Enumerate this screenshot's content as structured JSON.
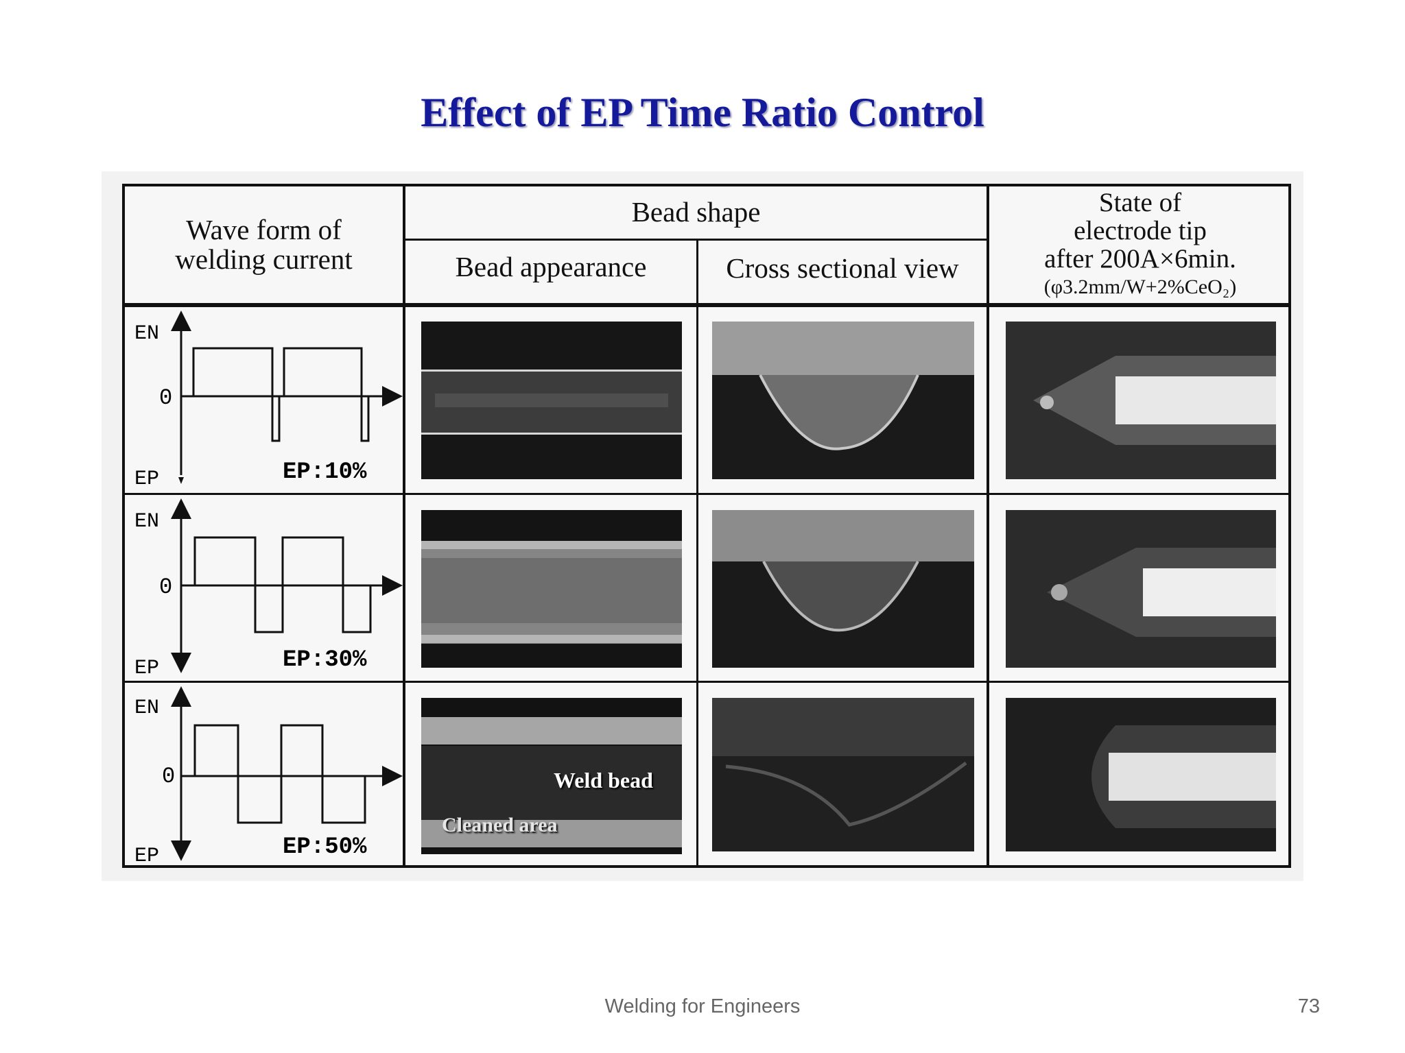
{
  "slide": {
    "title": "Effect of EP Time Ratio Control",
    "footer": "Welding for Engineers",
    "page_number": "73"
  },
  "table": {
    "header": {
      "waveform": "Wave form of\nwelding current",
      "bead_shape": "Bead shape",
      "bead_appearance": "Bead appearance",
      "cross_section": "Cross sectional view",
      "electrode_state_line1": "State of",
      "electrode_state_line2": "electrode tip",
      "electrode_state_line3": "after 200A×6min.",
      "electrode_state_line4": "(φ3.2mm/W+2%CeO₂)"
    },
    "axis_labels": {
      "en": "EN",
      "zero": "0",
      "ep": "EP"
    },
    "rows": [
      {
        "ep_label": "EP:10%",
        "ep_ratio": 0.1
      },
      {
        "ep_label": "EP:30%",
        "ep_ratio": 0.3
      },
      {
        "ep_label": "EP:50%",
        "ep_ratio": 0.5
      }
    ],
    "annotations": {
      "weld_bead": "Weld bead",
      "cleaned_area": "Cleaned area"
    }
  },
  "colors": {
    "title": "#141a99",
    "footer": "#666666",
    "grid": "#111111"
  }
}
